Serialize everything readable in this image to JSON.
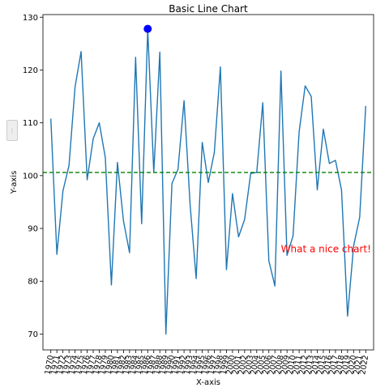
{
  "chart_data": {
    "type": "line",
    "title": "Basic Line Chart",
    "xlabel": "X-axis",
    "ylabel": "Y-axis",
    "x": [
      1970,
      1971,
      1972,
      1973,
      1974,
      1975,
      1976,
      1977,
      1978,
      1979,
      1980,
      1981,
      1982,
      1983,
      1984,
      1985,
      1986,
      1987,
      1988,
      1989,
      1990,
      1991,
      1992,
      1993,
      1994,
      1995,
      1996,
      1997,
      1998,
      1999,
      2000,
      2001,
      2002,
      2003,
      2004,
      2005,
      2006,
      2007,
      2008,
      2009,
      2010,
      2011,
      2012,
      2013,
      2014,
      2015,
      2016,
      2017,
      2018,
      2019,
      2020,
      2021,
      2022
    ],
    "series": [
      {
        "values": [
          110.8,
          85.1,
          97.1,
          101.9,
          116.8,
          123.5,
          99.2,
          107.0,
          110.0,
          103.4,
          79.3,
          102.5,
          91.4,
          85.4,
          122.4,
          90.9,
          127.8,
          100.6,
          123.4,
          70.0,
          98.5,
          101.2,
          114.2,
          94.5,
          80.5,
          106.3,
          98.7,
          104.4,
          120.6,
          82.2,
          96.6,
          88.4,
          91.7,
          100.4,
          100.6,
          113.8,
          83.9,
          79.1,
          119.8,
          84.9,
          88.6,
          108.3,
          117.0,
          115.0,
          97.3,
          108.8,
          102.3,
          102.9,
          97.3,
          73.4,
          86.7,
          92.1,
          113.2
        ],
        "color": "#1f77b4"
      }
    ],
    "ylim": [
      67,
      130.5
    ],
    "xlim": [
      1968.7,
      2023.3
    ],
    "yticks": [
      70,
      80,
      90,
      100,
      110,
      120,
      130
    ],
    "hline": {
      "y": 100.6,
      "color": "#008000",
      "style": "dashed"
    },
    "highlight": {
      "x": 1986,
      "y": 127.8,
      "color": "#0000ff"
    },
    "annotation": {
      "text": "What a nice chart!",
      "x": 2008,
      "y": 85.5,
      "color": "#ff0000"
    },
    "grid": false,
    "x_tick_rotation": "vertical-ish"
  },
  "ui": {
    "side_handle_icon": "ellipsis-icon",
    "side_handle_glyph": "⋮"
  }
}
